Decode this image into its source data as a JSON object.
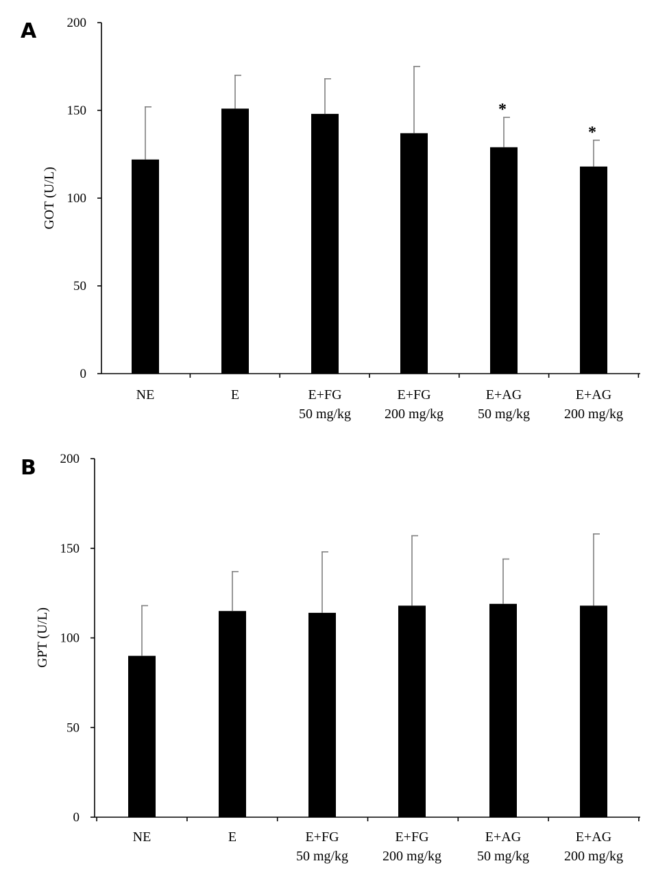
{
  "colors": {
    "bar": "#000000",
    "error_bar": "#7f7f7f",
    "axis": "#000000"
  },
  "chart_data": [
    {
      "panel": "A",
      "type": "bar",
      "ylabel": "GOT (U/L)",
      "ylim": [
        0,
        200
      ],
      "yticks": [
        "0",
        "50",
        "100",
        "150",
        "200"
      ],
      "categories": [
        [
          "NE"
        ],
        [
          "E"
        ],
        [
          "E+FG",
          "50 mg/kg"
        ],
        [
          "E+FG",
          "200 mg/kg"
        ],
        [
          "E+AG",
          "50 mg/kg"
        ],
        [
          "E+AG",
          "200 mg/kg"
        ]
      ],
      "values": [
        122,
        151,
        148,
        137,
        129,
        118
      ],
      "errors": [
        30,
        19,
        20,
        38,
        17,
        15
      ],
      "significance": [
        "",
        "",
        "",
        "",
        "*",
        "*"
      ]
    },
    {
      "panel": "B",
      "type": "bar",
      "ylabel": "GPT (U/L)",
      "ylim": [
        0,
        200
      ],
      "yticks": [
        "0",
        "50",
        "100",
        "150",
        "200"
      ],
      "categories": [
        [
          "NE"
        ],
        [
          "E"
        ],
        [
          "E+FG",
          "50 mg/kg"
        ],
        [
          "E+FG",
          "200 mg/kg"
        ],
        [
          "E+AG",
          "50 mg/kg"
        ],
        [
          "E+AG",
          "200 mg/kg"
        ]
      ],
      "values": [
        90,
        115,
        114,
        118,
        119,
        118
      ],
      "errors": [
        28,
        22,
        34,
        39,
        25,
        40
      ],
      "significance": [
        "",
        "",
        "",
        "",
        "",
        ""
      ]
    }
  ]
}
